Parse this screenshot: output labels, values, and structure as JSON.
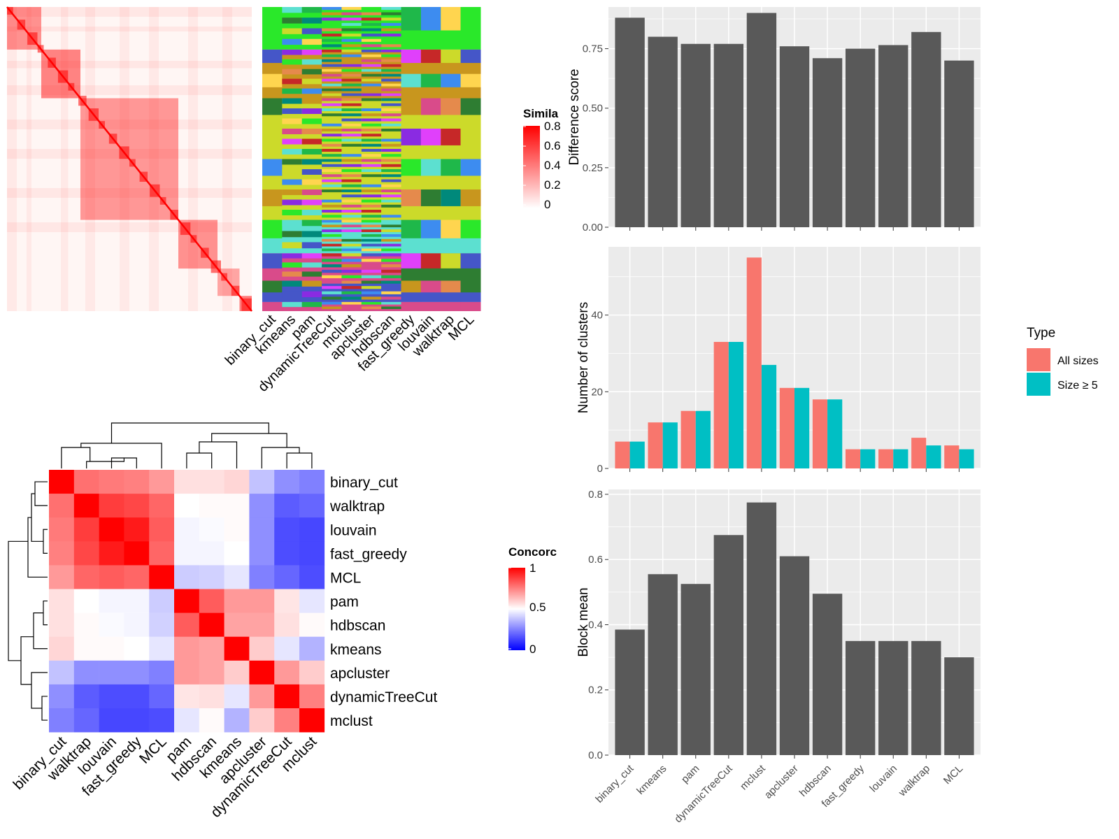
{
  "colors": {
    "panel_bg": "#EBEBEB",
    "grid": "#FFFFFF",
    "bar_gray": "#595959",
    "type_all": "#F8766D",
    "type_ge5": "#00BFC4",
    "sim_high": "#FF0000",
    "conc_low": "#0000FF",
    "conc_mid": "#FFFFFF",
    "conc_high": "#FF0000"
  },
  "legends": {
    "similarity": {
      "title": "Simila",
      "ticks": [
        "0.8",
        "0.6",
        "0.4",
        "0.2",
        "0"
      ]
    },
    "concordance": {
      "title": "Concorc",
      "ticks": [
        "1",
        "0.5",
        "0"
      ]
    },
    "type": {
      "title": "Type",
      "items": [
        "All sizes",
        "Size ≥ 5"
      ]
    }
  },
  "chart_data": [
    {
      "type": "heatmap",
      "panel": "similarity-matrix",
      "legend_title": "Simila",
      "color_scale": [
        0,
        0.8
      ],
      "note_description": null,
      "column_labels": [
        "binary_cut",
        "kmeans",
        "pam",
        "dynamicTreeCut",
        "mclust",
        "apcluster",
        "hdbscan",
        "fast_greedy",
        "louvain",
        "walktrap",
        "MCL"
      ]
    },
    {
      "type": "heatmap",
      "panel": "concordance",
      "legend_title": "Concorc",
      "color_scale": [
        0,
        1
      ],
      "row_labels": [
        "binary_cut",
        "walktrap",
        "louvain",
        "fast_greedy",
        "MCL",
        "pam",
        "hdbscan",
        "kmeans",
        "apcluster",
        "dynamicTreeCut",
        "mclust"
      ],
      "column_labels": [
        "binary_cut",
        "walktrap",
        "louvain",
        "fast_greedy",
        "MCL",
        "pam",
        "hdbscan",
        "kmeans",
        "apcluster",
        "dynamicTreeCut",
        "mclust"
      ],
      "values": [
        [
          1.0,
          0.78,
          0.76,
          0.75,
          0.7,
          0.56,
          0.56,
          0.58,
          0.38,
          0.28,
          0.25
        ],
        [
          0.78,
          1.0,
          0.88,
          0.86,
          0.8,
          0.5,
          0.51,
          0.51,
          0.28,
          0.18,
          0.2
        ],
        [
          0.76,
          0.88,
          1.0,
          0.95,
          0.82,
          0.48,
          0.49,
          0.51,
          0.28,
          0.15,
          0.14
        ],
        [
          0.75,
          0.86,
          0.95,
          1.0,
          0.8,
          0.48,
          0.48,
          0.5,
          0.28,
          0.15,
          0.14
        ],
        [
          0.7,
          0.8,
          0.82,
          0.8,
          1.0,
          0.4,
          0.41,
          0.45,
          0.25,
          0.2,
          0.15
        ],
        [
          0.56,
          0.5,
          0.48,
          0.48,
          0.4,
          1.0,
          0.82,
          0.7,
          0.7,
          0.55,
          0.45
        ],
        [
          0.56,
          0.51,
          0.49,
          0.48,
          0.41,
          0.82,
          1.0,
          0.68,
          0.68,
          0.56,
          0.51
        ],
        [
          0.58,
          0.51,
          0.51,
          0.5,
          0.45,
          0.7,
          0.68,
          1.0,
          0.6,
          0.45,
          0.35
        ],
        [
          0.38,
          0.28,
          0.28,
          0.28,
          0.25,
          0.7,
          0.68,
          0.6,
          1.0,
          0.7,
          0.6
        ],
        [
          0.28,
          0.18,
          0.15,
          0.15,
          0.2,
          0.55,
          0.56,
          0.45,
          0.7,
          1.0,
          0.75
        ],
        [
          0.25,
          0.2,
          0.14,
          0.14,
          0.15,
          0.45,
          0.51,
          0.35,
          0.6,
          0.75,
          1.0
        ]
      ]
    },
    {
      "type": "bar",
      "panel": "difference-score",
      "categories": [
        "binary_cut",
        "kmeans",
        "pam",
        "dynamicTreeCut",
        "mclust",
        "apcluster",
        "hdbscan",
        "fast_greedy",
        "louvain",
        "walktrap",
        "MCL"
      ],
      "values": [
        0.88,
        0.8,
        0.77,
        0.77,
        0.9,
        0.76,
        0.71,
        0.75,
        0.765,
        0.82,
        0.7
      ],
      "ylabel": "Difference score",
      "ylim": [
        0,
        0.925
      ],
      "yticks": [
        "0.00",
        "0.25",
        "0.50",
        "0.75"
      ],
      "grid": true
    },
    {
      "type": "bar",
      "panel": "number-of-clusters",
      "categories": [
        "binary_cut",
        "kmeans",
        "pam",
        "dynamicTreeCut",
        "mclust",
        "apcluster",
        "hdbscan",
        "fast_greedy",
        "louvain",
        "walktrap",
        "MCL"
      ],
      "series": [
        {
          "name": "All sizes",
          "values": [
            7,
            12,
            15,
            33,
            55,
            21,
            18,
            5,
            5,
            8,
            6
          ]
        },
        {
          "name": "Size ≥ 5",
          "values": [
            7,
            12,
            15,
            33,
            27,
            21,
            18,
            5,
            5,
            6,
            5
          ]
        }
      ],
      "ylabel": "Number of clusters",
      "ylim": [
        0,
        57.8
      ],
      "yticks": [
        "0",
        "20",
        "40"
      ],
      "legend_title": "Type",
      "legend_position": "right",
      "grid": true
    },
    {
      "type": "bar",
      "panel": "block-mean",
      "categories": [
        "binary_cut",
        "kmeans",
        "pam",
        "dynamicTreeCut",
        "mclust",
        "apcluster",
        "hdbscan",
        "fast_greedy",
        "louvain",
        "walktrap",
        "MCL"
      ],
      "values": [
        0.385,
        0.555,
        0.525,
        0.675,
        0.775,
        0.61,
        0.495,
        0.35,
        0.35,
        0.35,
        0.3
      ],
      "ylabel": "Block mean",
      "ylim": [
        0,
        0.815
      ],
      "yticks": [
        "0.0",
        "0.2",
        "0.4",
        "0.6",
        "0.8"
      ],
      "grid": true
    }
  ]
}
